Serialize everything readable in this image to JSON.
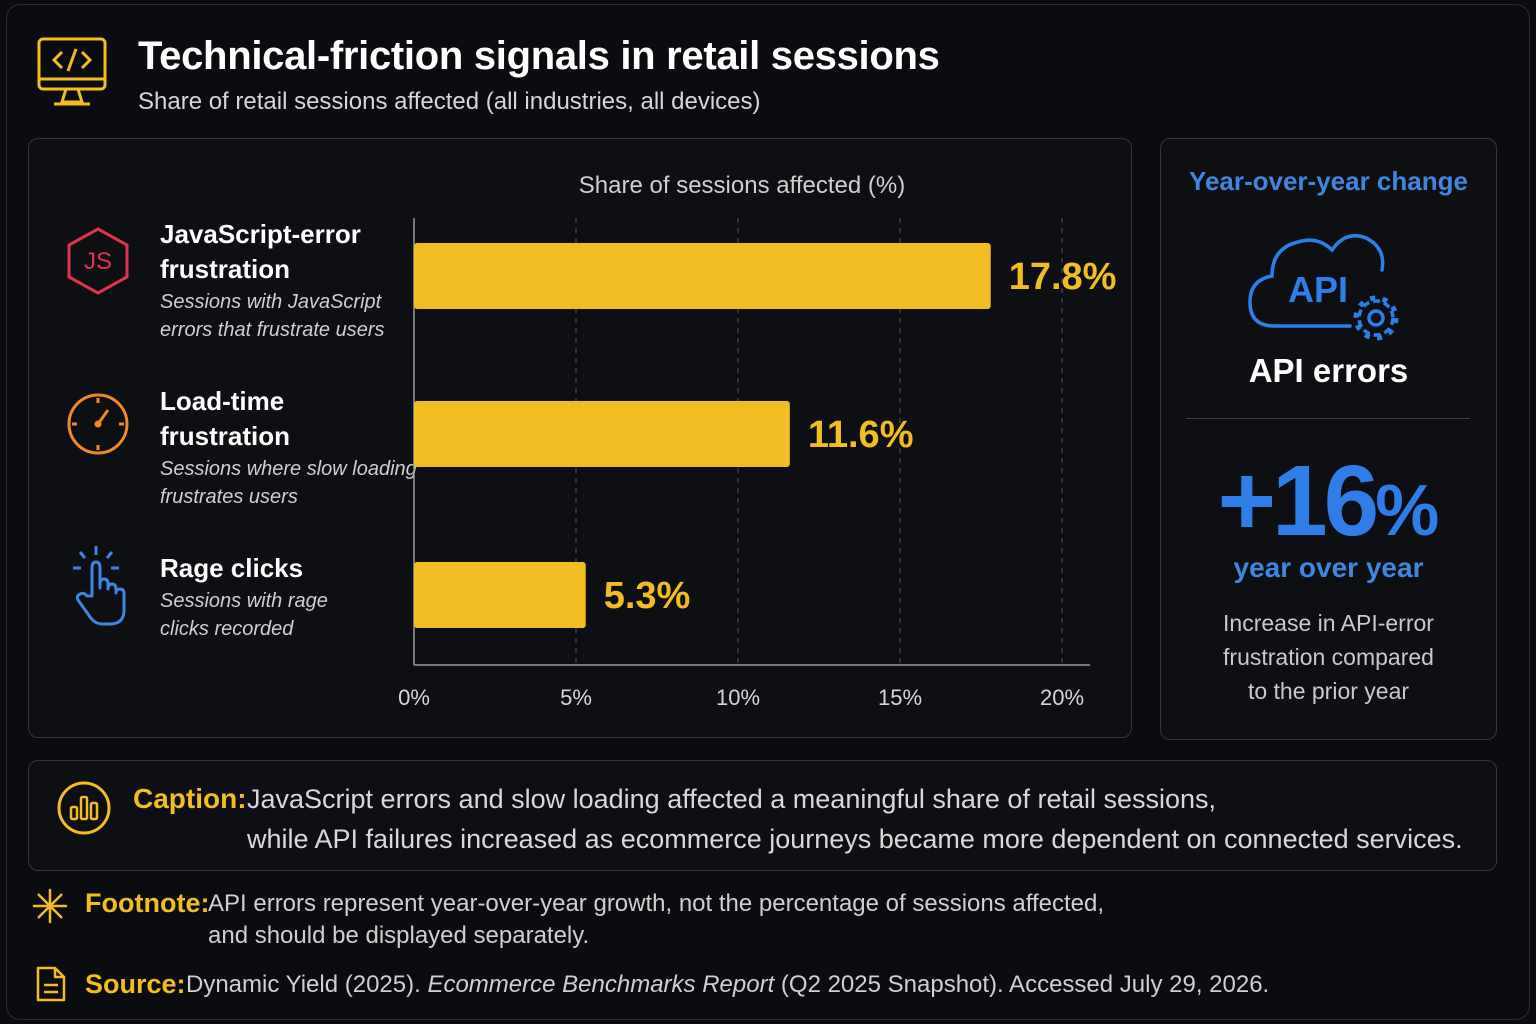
{
  "header": {
    "title": "Technical-friction signals in retail sessions",
    "subtitle": "Share of retail sessions affected (all industries, all devices)",
    "icon": "code-monitor-icon"
  },
  "colors": {
    "bar": "#f2bd22",
    "accent_blue": "#2f7ee8",
    "js_icon": "#e0334f",
    "clock_icon": "#f08a24",
    "hand_icon": "#3f86e0"
  },
  "chart_data": {
    "type": "bar",
    "orientation": "horizontal",
    "title": "Share of sessions affected (%)",
    "categories": [
      "JavaScript-error frustration",
      "Load-time frustration",
      "Rage clicks"
    ],
    "category_descriptions": [
      [
        "Sessions with JavaScript",
        "errors that frustrate users"
      ],
      [
        "Sessions where slow loading",
        "frustrates users"
      ],
      [
        "Sessions with rage",
        "clicks recorded"
      ]
    ],
    "category_label_lines": [
      [
        "JavaScript-error",
        "frustration"
      ],
      [
        "Load-time",
        "frustration"
      ],
      [
        "Rage clicks"
      ]
    ],
    "category_icons": [
      "js-hexagon-icon",
      "stopwatch-icon",
      "tap-hand-icon"
    ],
    "values": [
      17.8,
      11.6,
      5.3
    ],
    "value_labels": [
      "17.8%",
      "11.6%",
      "5.3%"
    ],
    "xlim": [
      0,
      20
    ],
    "xticks": [
      0,
      5,
      10,
      15,
      20
    ],
    "xtick_labels": [
      "0%",
      "5%",
      "10%",
      "15%",
      "20%"
    ],
    "grid": "vertical dashed"
  },
  "yoy": {
    "title": "Year-over-year change",
    "icon": "api-cloud-gear-icon",
    "icon_text": "API",
    "metric": "API errors",
    "value": "+16",
    "unit": "%",
    "period": "year over year",
    "description": [
      "Increase in API-error",
      "frustration compared",
      "to the prior year"
    ]
  },
  "caption": {
    "label": "Caption:",
    "lines": [
      "JavaScript errors and slow loading affected a meaningful share of retail sessions,",
      "while API failures increased as ecommerce journeys became more dependent on connected services."
    ]
  },
  "footnote": {
    "label": "Footnote:",
    "lines": [
      "API errors represent year-over-year growth, not the percentage of sessions affected,",
      "and should be displayed separately."
    ]
  },
  "source": {
    "label": "Source:",
    "before": "Dynamic Yield (2025). ",
    "italic": "Ecommerce Benchmarks Report",
    "after": " (Q2 2025 Snapshot). Accessed July 29, 2026."
  }
}
